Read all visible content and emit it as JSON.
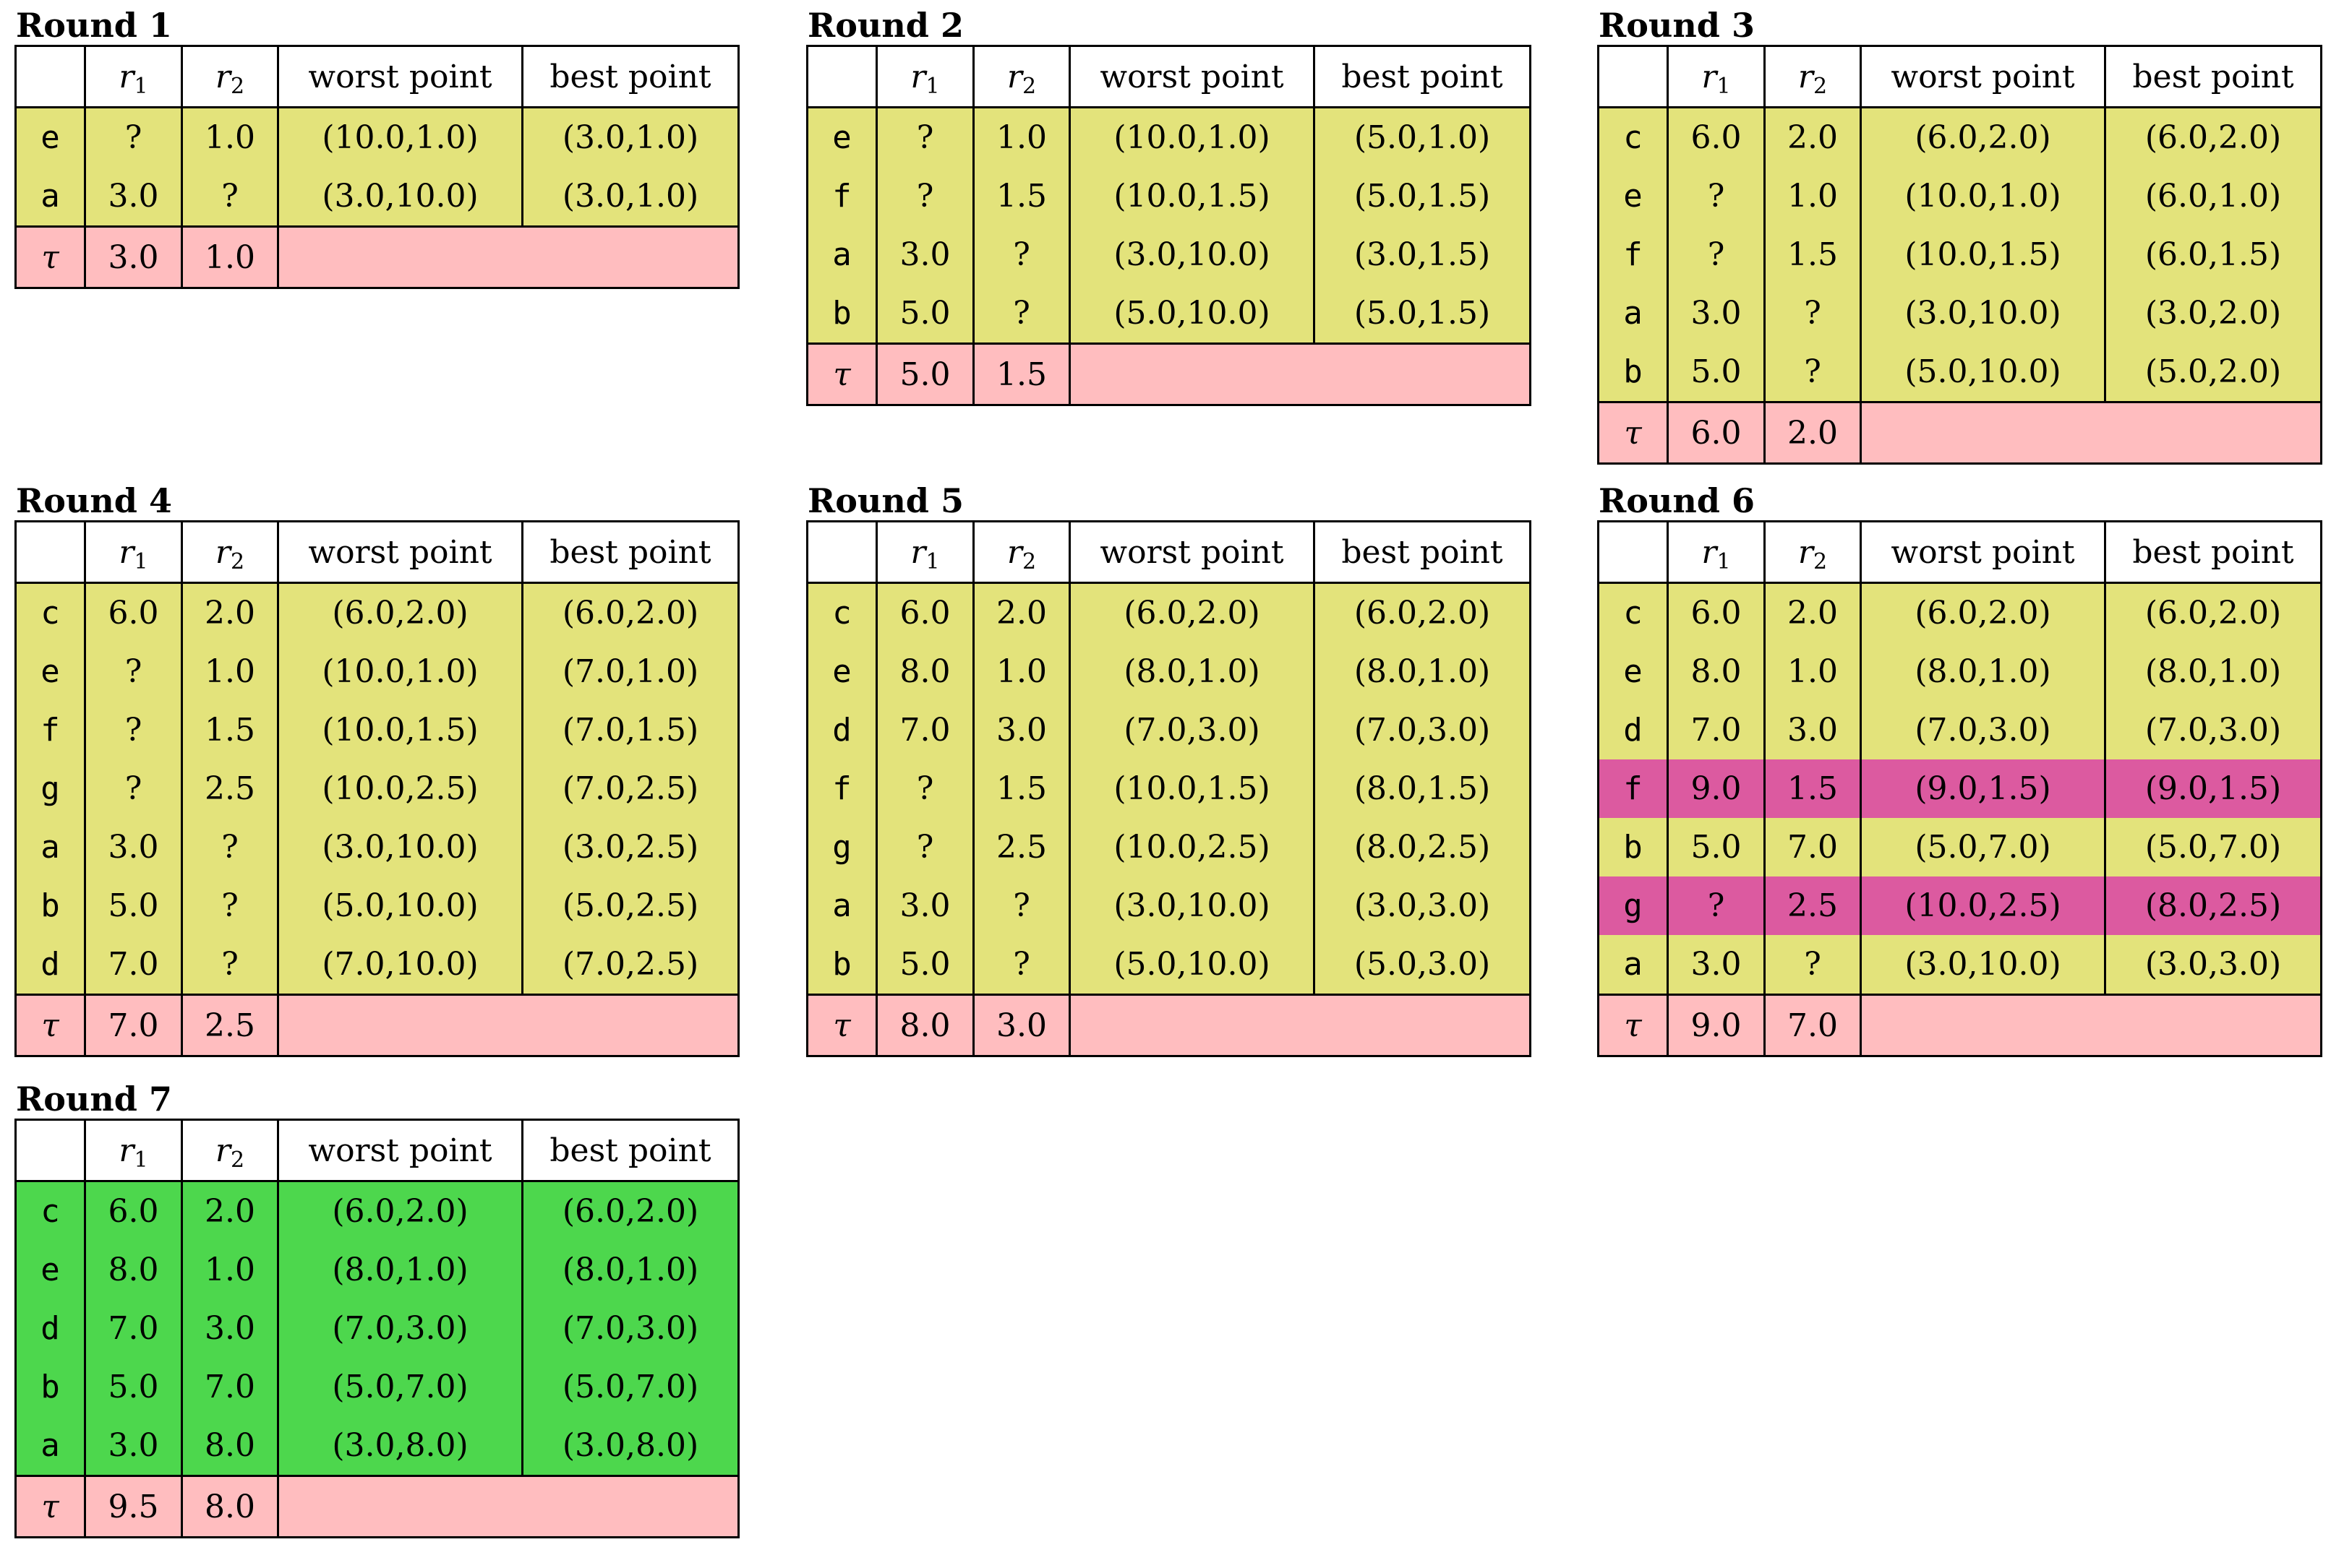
{
  "colors": {
    "yellow": "#e3e37b",
    "green": "#4dd74d",
    "magenta": "#dc5aa0",
    "tau_row": "#ffbdbf",
    "header": "#ffffff"
  },
  "headers": {
    "id": "",
    "r1_base": "r",
    "r1_sub": "1",
    "r2_base": "r",
    "r2_sub": "2",
    "worst": "worst point",
    "best": "best point"
  },
  "tau_symbol": "τ",
  "rounds": [
    {
      "title": "Round 1",
      "rows": [
        {
          "id": "e",
          "r1": "?",
          "r2": "1.0",
          "worst": "(10.0,1.0)",
          "best": "(3.0,1.0)",
          "color": "yellow"
        },
        {
          "id": "a",
          "r1": "3.0",
          "r2": "?",
          "worst": "(3.0,10.0)",
          "best": "(3.0,1.0)",
          "color": "yellow"
        }
      ],
      "tau": {
        "r1": "3.0",
        "r2": "1.0"
      }
    },
    {
      "title": "Round 2",
      "rows": [
        {
          "id": "e",
          "r1": "?",
          "r2": "1.0",
          "worst": "(10.0,1.0)",
          "best": "(5.0,1.0)",
          "color": "yellow"
        },
        {
          "id": "f",
          "r1": "?",
          "r2": "1.5",
          "worst": "(10.0,1.5)",
          "best": "(5.0,1.5)",
          "color": "yellow"
        },
        {
          "id": "a",
          "r1": "3.0",
          "r2": "?",
          "worst": "(3.0,10.0)",
          "best": "(3.0,1.5)",
          "color": "yellow"
        },
        {
          "id": "b",
          "r1": "5.0",
          "r2": "?",
          "worst": "(5.0,10.0)",
          "best": "(5.0,1.5)",
          "color": "yellow"
        }
      ],
      "tau": {
        "r1": "5.0",
        "r2": "1.5"
      }
    },
    {
      "title": "Round 3",
      "rows": [
        {
          "id": "c",
          "r1": "6.0",
          "r2": "2.0",
          "worst": "(6.0,2.0)",
          "best": "(6.0,2.0)",
          "color": "yellow"
        },
        {
          "id": "e",
          "r1": "?",
          "r2": "1.0",
          "worst": "(10.0,1.0)",
          "best": "(6.0,1.0)",
          "color": "yellow"
        },
        {
          "id": "f",
          "r1": "?",
          "r2": "1.5",
          "worst": "(10.0,1.5)",
          "best": "(6.0,1.5)",
          "color": "yellow"
        },
        {
          "id": "a",
          "r1": "3.0",
          "r2": "?",
          "worst": "(3.0,10.0)",
          "best": "(3.0,2.0)",
          "color": "yellow"
        },
        {
          "id": "b",
          "r1": "5.0",
          "r2": "?",
          "worst": "(5.0,10.0)",
          "best": "(5.0,2.0)",
          "color": "yellow"
        }
      ],
      "tau": {
        "r1": "6.0",
        "r2": "2.0"
      }
    },
    {
      "title": "Round 4",
      "rows": [
        {
          "id": "c",
          "r1": "6.0",
          "r2": "2.0",
          "worst": "(6.0,2.0)",
          "best": "(6.0,2.0)",
          "color": "yellow"
        },
        {
          "id": "e",
          "r1": "?",
          "r2": "1.0",
          "worst": "(10.0,1.0)",
          "best": "(7.0,1.0)",
          "color": "yellow"
        },
        {
          "id": "f",
          "r1": "?",
          "r2": "1.5",
          "worst": "(10.0,1.5)",
          "best": "(7.0,1.5)",
          "color": "yellow"
        },
        {
          "id": "g",
          "r1": "?",
          "r2": "2.5",
          "worst": "(10.0,2.5)",
          "best": "(7.0,2.5)",
          "color": "yellow"
        },
        {
          "id": "a",
          "r1": "3.0",
          "r2": "?",
          "worst": "(3.0,10.0)",
          "best": "(3.0,2.5)",
          "color": "yellow"
        },
        {
          "id": "b",
          "r1": "5.0",
          "r2": "?",
          "worst": "(5.0,10.0)",
          "best": "(5.0,2.5)",
          "color": "yellow"
        },
        {
          "id": "d",
          "r1": "7.0",
          "r2": "?",
          "worst": "(7.0,10.0)",
          "best": "(7.0,2.5)",
          "color": "yellow"
        }
      ],
      "tau": {
        "r1": "7.0",
        "r2": "2.5"
      }
    },
    {
      "title": "Round 5",
      "rows": [
        {
          "id": "c",
          "r1": "6.0",
          "r2": "2.0",
          "worst": "(6.0,2.0)",
          "best": "(6.0,2.0)",
          "color": "yellow"
        },
        {
          "id": "e",
          "r1": "8.0",
          "r2": "1.0",
          "worst": "(8.0,1.0)",
          "best": "(8.0,1.0)",
          "color": "yellow"
        },
        {
          "id": "d",
          "r1": "7.0",
          "r2": "3.0",
          "worst": "(7.0,3.0)",
          "best": "(7.0,3.0)",
          "color": "yellow"
        },
        {
          "id": "f",
          "r1": "?",
          "r2": "1.5",
          "worst": "(10.0,1.5)",
          "best": "(8.0,1.5)",
          "color": "yellow"
        },
        {
          "id": "g",
          "r1": "?",
          "r2": "2.5",
          "worst": "(10.0,2.5)",
          "best": "(8.0,2.5)",
          "color": "yellow"
        },
        {
          "id": "a",
          "r1": "3.0",
          "r2": "?",
          "worst": "(3.0,10.0)",
          "best": "(3.0,3.0)",
          "color": "yellow"
        },
        {
          "id": "b",
          "r1": "5.0",
          "r2": "?",
          "worst": "(5.0,10.0)",
          "best": "(5.0,3.0)",
          "color": "yellow"
        }
      ],
      "tau": {
        "r1": "8.0",
        "r2": "3.0"
      }
    },
    {
      "title": "Round 6",
      "rows": [
        {
          "id": "c",
          "r1": "6.0",
          "r2": "2.0",
          "worst": "(6.0,2.0)",
          "best": "(6.0,2.0)",
          "color": "yellow"
        },
        {
          "id": "e",
          "r1": "8.0",
          "r2": "1.0",
          "worst": "(8.0,1.0)",
          "best": "(8.0,1.0)",
          "color": "yellow"
        },
        {
          "id": "d",
          "r1": "7.0",
          "r2": "3.0",
          "worst": "(7.0,3.0)",
          "best": "(7.0,3.0)",
          "color": "yellow"
        },
        {
          "id": "f",
          "r1": "9.0",
          "r2": "1.5",
          "worst": "(9.0,1.5)",
          "best": "(9.0,1.5)",
          "color": "magenta"
        },
        {
          "id": "b",
          "r1": "5.0",
          "r2": "7.0",
          "worst": "(5.0,7.0)",
          "best": "(5.0,7.0)",
          "color": "yellow"
        },
        {
          "id": "g",
          "r1": "?",
          "r2": "2.5",
          "worst": "(10.0,2.5)",
          "best": "(8.0,2.5)",
          "color": "magenta"
        },
        {
          "id": "a",
          "r1": "3.0",
          "r2": "?",
          "worst": "(3.0,10.0)",
          "best": "(3.0,3.0)",
          "color": "yellow"
        }
      ],
      "tau": {
        "r1": "9.0",
        "r2": "7.0"
      }
    },
    {
      "title": "Round 7",
      "rows": [
        {
          "id": "c",
          "r1": "6.0",
          "r2": "2.0",
          "worst": "(6.0,2.0)",
          "best": "(6.0,2.0)",
          "color": "green"
        },
        {
          "id": "e",
          "r1": "8.0",
          "r2": "1.0",
          "worst": "(8.0,1.0)",
          "best": "(8.0,1.0)",
          "color": "green"
        },
        {
          "id": "d",
          "r1": "7.0",
          "r2": "3.0",
          "worst": "(7.0,3.0)",
          "best": "(7.0,3.0)",
          "color": "green"
        },
        {
          "id": "b",
          "r1": "5.0",
          "r2": "7.0",
          "worst": "(5.0,7.0)",
          "best": "(5.0,7.0)",
          "color": "green"
        },
        {
          "id": "a",
          "r1": "3.0",
          "r2": "8.0",
          "worst": "(3.0,8.0)",
          "best": "(3.0,8.0)",
          "color": "green"
        }
      ],
      "tau": {
        "r1": "9.5",
        "r2": "8.0"
      }
    }
  ]
}
